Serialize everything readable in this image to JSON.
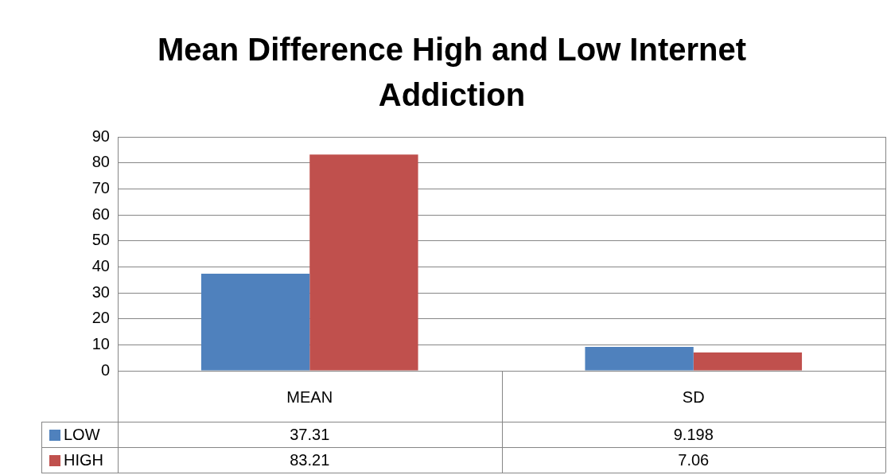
{
  "chart_data": {
    "type": "bar",
    "title": "Mean Difference High and Low Internet Addiction",
    "categories": [
      "MEAN",
      "SD"
    ],
    "series": [
      {
        "name": "LOW",
        "color": "#4f81bd",
        "values": [
          37.31,
          9.198
        ]
      },
      {
        "name": "HIGH",
        "color": "#c0504d",
        "values": [
          83.21,
          7.06
        ]
      }
    ],
    "ylim": [
      0,
      90
    ],
    "yticks": [
      0,
      10,
      20,
      30,
      40,
      50,
      60,
      70,
      80,
      90
    ],
    "grid": "y",
    "legend": "bottom",
    "data_labels": true
  }
}
